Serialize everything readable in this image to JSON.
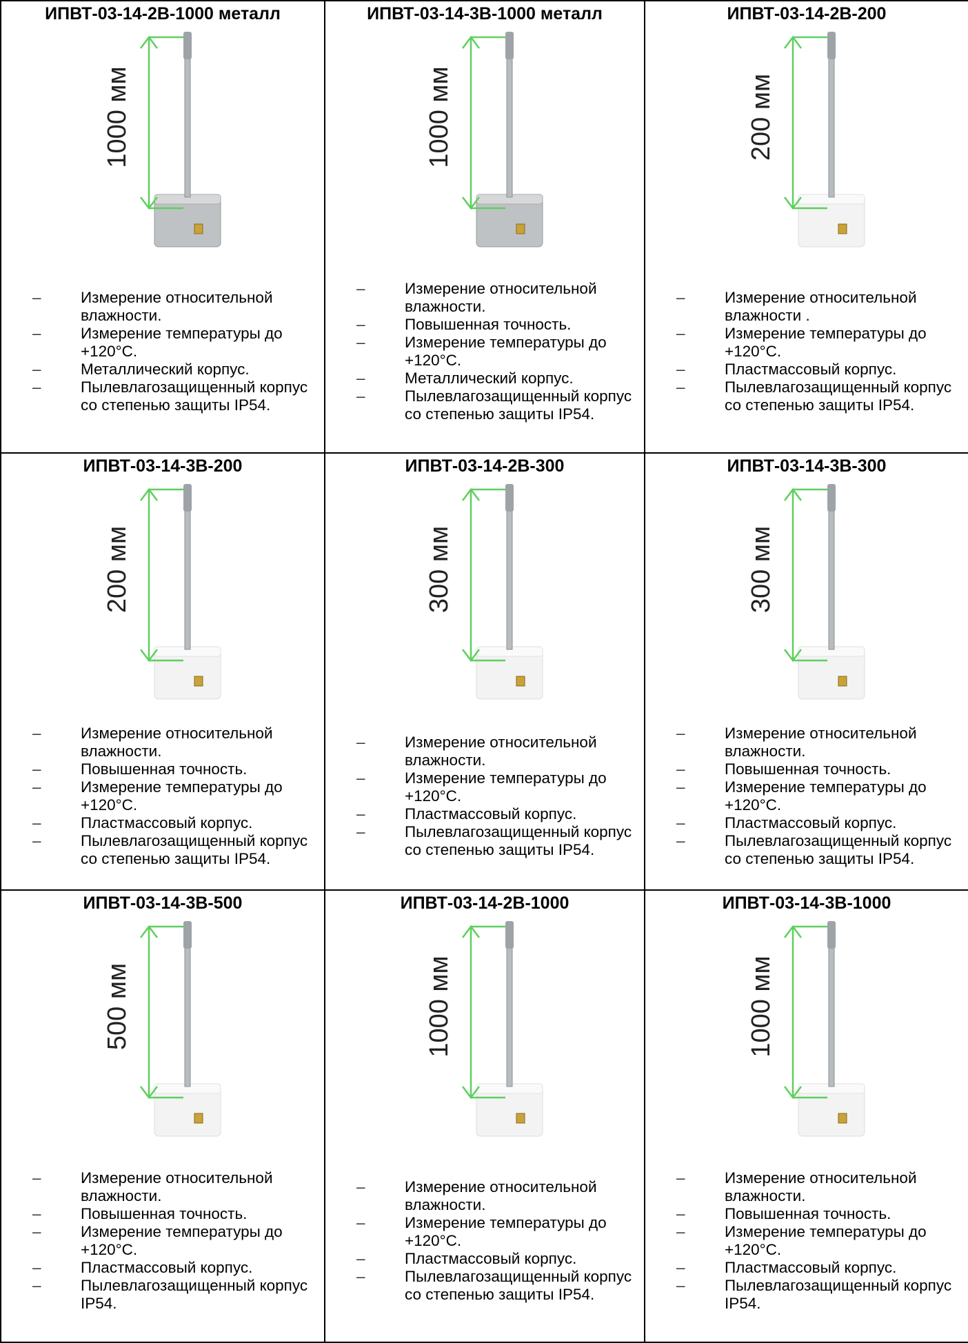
{
  "cells": [
    {
      "title": "ИПВТ-03-14-2В-1000 металл",
      "dimension": "1000 мм",
      "features": [
        "Измерение относительной влажности.",
        "Измерение температуры до +120°C.",
        "Металлический корпус.",
        "Пылевлагозащищенный корпус со степенью защиты IP54."
      ]
    },
    {
      "title": "ИПВТ-03-14-3В-1000 металл",
      "dimension": "1000 мм",
      "features": [
        "Измерение относительной влажности.",
        "Повышенная точность.",
        "Измерение температуры до +120°C.",
        "Металлический корпус.",
        "Пылевлагозащищенный корпус со степенью защиты IP54."
      ]
    },
    {
      "title": "ИПВТ-03-14-2В-200",
      "dimension": "200 мм",
      "features": [
        "Измерение относительной влажности .",
        "Измерение температуры до +120°C.",
        "Пластмассовый корпус.",
        "Пылевлагозащищенный корпус со степенью защиты IP54."
      ]
    },
    {
      "title": "ИПВТ-03-14-3В-200",
      "dimension": "200 мм",
      "features": [
        "Измерение относительной влажности.",
        "Повышенная точность.",
        "Измерение температуры до +120°C.",
        "Пластмассовый корпус.",
        "Пылевлагозащищенный корпус со степенью защиты IP54."
      ]
    },
    {
      "title": "ИПВТ-03-14-2В-300",
      "dimension": "300 мм",
      "features": [
        "Измерение относительной влажности.",
        "Измерение температуры до +120°C.",
        "Пластмассовый корпус.",
        "Пылевлагозащищенный корпус со степенью защиты IP54."
      ]
    },
    {
      "title": "ИПВТ-03-14-3В-300",
      "dimension": "300 мм",
      "features": [
        "Измерение относительной влажности.",
        "Повышенная точность.",
        "Измерение температуры до +120°C.",
        "Пластмассовый корпус.",
        "Пылевлагозащищенный корпус со степенью защиты IP54."
      ]
    },
    {
      "title": "ИПВТ-03-14-3В-500",
      "dimension": "500 мм",
      "features": [
        "Измерение относительной влажности.",
        "Повышенная точность.",
        "Измерение температуры до +120°C.",
        "Пластмассовый корпус.",
        "Пылевлагозащищенный корпус IP54."
      ]
    },
    {
      "title": "ИПВТ-03-14-2В-1000",
      "dimension": "1000 мм",
      "features": [
        "Измерение относительной влажности.",
        "Измерение температуры до +120°C.",
        "Пластмассовый корпус.",
        "Пылевлагозащищенный корпус со степенью защиты IP54."
      ]
    },
    {
      "title": "ИПВТ-03-14-3В-1000",
      "dimension": "1000 мм",
      "features": [
        "Измерение относительной влажности.",
        "Повышенная точность.",
        "Измерение температуры до +120°C.",
        "Пластмассовый корпус.",
        "Пылевлагозащищенный корпус IP54."
      ]
    }
  ]
}
